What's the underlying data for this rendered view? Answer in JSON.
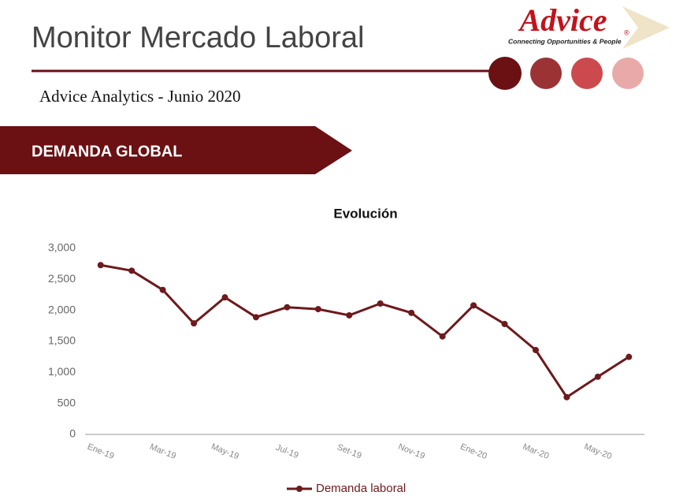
{
  "header": {
    "title": "Monitor Mercado Laboral",
    "subtitle": "Advice Analytics - Junio 2020",
    "logo": "Advice",
    "logo_mark": "®",
    "tagline": "Connecting Opportunities & People",
    "section": "DEMANDA GLOBAL"
  },
  "chart_data": {
    "type": "line",
    "title": "Evolución",
    "categories": [
      "Ene-19",
      null,
      "Mar-19",
      null,
      "May-19",
      null,
      "Jul-19",
      null,
      "Set-19",
      null,
      "Nov-19",
      null,
      "Ene-20",
      null,
      "Mar-20",
      null,
      "May-20",
      null
    ],
    "series": [
      {
        "name": "Demanda laboral",
        "color": "#6d1a1c",
        "values": [
          2730,
          2640,
          2330,
          1790,
          2210,
          1890,
          2050,
          2020,
          1920,
          2110,
          1960,
          1580,
          2080,
          1780,
          1360,
          600,
          930,
          1250
        ]
      }
    ],
    "ylim": [
      0,
      3000
    ],
    "yticks": [
      0,
      500,
      {
        "value": 1000,
        "label": "1,000"
      },
      {
        "value": 1500,
        "label": "1,500"
      },
      {
        "value": 2000,
        "label": "2,000"
      },
      {
        "value": 2500,
        "label": "2,500"
      },
      {
        "value": 3000,
        "label": "3,000"
      }
    ],
    "grid": false,
    "legend": "bottom"
  }
}
